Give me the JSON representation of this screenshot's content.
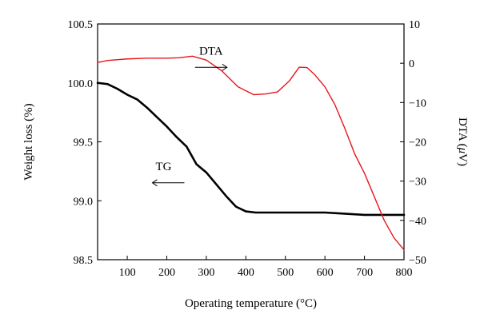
{
  "chart_data": {
    "type": "line",
    "xlabel": "Operating temperature (°C)",
    "ylabel_left": "Weight loss (%)",
    "ylabel_right_prefix": "DTA (",
    "ylabel_right_unit_mu": "μ",
    "ylabel_right_suffix": "V)",
    "xlim": [
      25,
      800
    ],
    "ylim_left": [
      98.5,
      100.5
    ],
    "ylim_right": [
      -50,
      10
    ],
    "x_ticks": [
      100,
      200,
      300,
      400,
      500,
      600,
      700,
      800
    ],
    "x_tick_labels": [
      "100",
      "200",
      "300",
      "400",
      "500",
      "600",
      "700",
      "800"
    ],
    "y_left_ticks": [
      98.5,
      99.0,
      99.5,
      100.0,
      100.5
    ],
    "y_left_tick_labels": [
      "98.5",
      "99.0",
      "99.5",
      "100.0",
      "100.5"
    ],
    "y_right_ticks": [
      10,
      0,
      -10,
      -20,
      -30,
      -40,
      -50
    ],
    "y_right_tick_labels": [
      "10",
      "0",
      "−10",
      "−20",
      "−30",
      "−40",
      "−50"
    ],
    "grid": false,
    "series": [
      {
        "name": "TG",
        "axis": "left",
        "color": "#000000",
        "x": [
          25,
          50,
          75,
          100,
          125,
          150,
          175,
          200,
          225,
          250,
          275,
          300,
          325,
          350,
          375,
          400,
          425,
          450,
          500,
          550,
          600,
          650,
          700,
          750,
          800
        ],
        "y": [
          100.0,
          99.99,
          99.95,
          99.9,
          99.86,
          99.79,
          99.71,
          99.63,
          99.54,
          99.46,
          99.31,
          99.24,
          99.14,
          99.04,
          98.95,
          98.91,
          98.9,
          98.9,
          98.9,
          98.9,
          98.9,
          98.89,
          98.88,
          98.88,
          98.88
        ]
      },
      {
        "name": "DTA",
        "axis": "right",
        "color": "#e8161b",
        "x": [
          25,
          50,
          100,
          150,
          200,
          230,
          265,
          300,
          340,
          380,
          420,
          450,
          480,
          510,
          535,
          555,
          575,
          600,
          625,
          650,
          675,
          700,
          725,
          750,
          775,
          800
        ],
        "y": [
          0.2,
          0.7,
          1.1,
          1.3,
          1.3,
          1.4,
          1.8,
          0.8,
          -2.0,
          -6.0,
          -8.0,
          -7.8,
          -7.3,
          -4.5,
          -1.0,
          -1.1,
          -3.0,
          -6.0,
          -10.5,
          -16.5,
          -23.0,
          -28.0,
          -34.0,
          -40.0,
          -44.5,
          -47.5
        ]
      }
    ],
    "annotations": [
      {
        "text": "DTA",
        "x": 320,
        "y_right": 1.0,
        "arrow": "right"
      },
      {
        "text": "TG",
        "x": 200,
        "y_left": 99.22,
        "arrow": "left"
      }
    ]
  }
}
